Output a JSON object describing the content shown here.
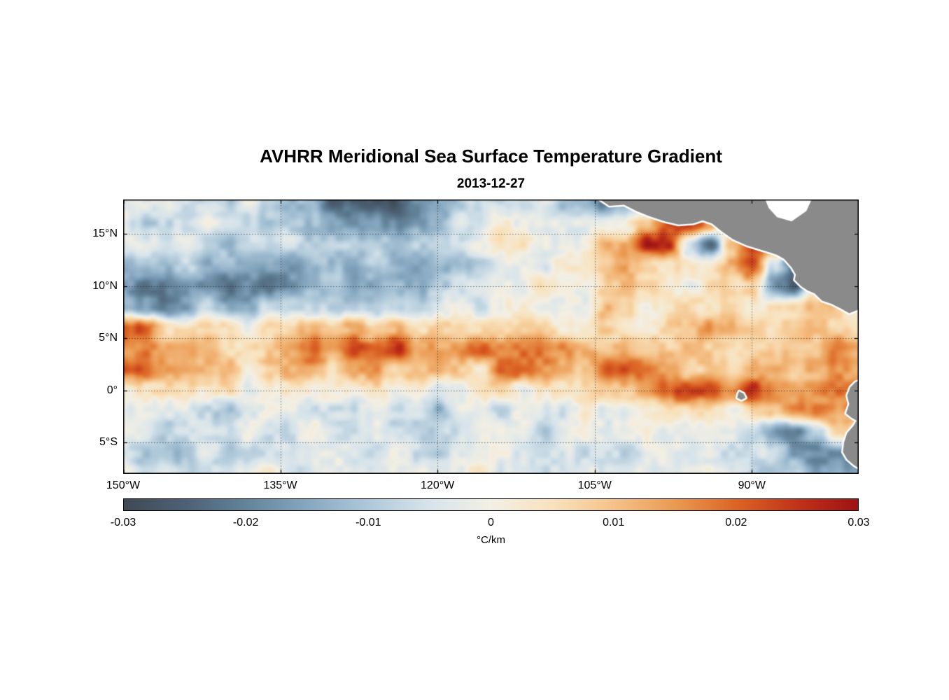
{
  "title": "AVHRR Meridional Sea Surface Temperature Gradient",
  "subtitle": "2013-12-27",
  "chart_data": {
    "type": "heatmap",
    "title": "AVHRR Meridional Sea Surface Temperature Gradient",
    "subtitle_date": "2013-12-27",
    "extent": {
      "lon_west_w": 150.0,
      "lon_east_w": 79.8,
      "lat_north": 18.3,
      "lat_south": -8.0
    },
    "x_axis": {
      "ticks": [
        {
          "label": "150°W",
          "lon_w": 150
        },
        {
          "label": "135°W",
          "lon_w": 135
        },
        {
          "label": "120°W",
          "lon_w": 120
        },
        {
          "label": "105°W",
          "lon_w": 105
        },
        {
          "label": "90°W",
          "lon_w": 90
        }
      ],
      "gridline_lons_w": [
        135,
        120,
        105,
        90
      ]
    },
    "y_axis": {
      "ticks": [
        {
          "label": "15°N",
          "lat": 15
        },
        {
          "label": "10°N",
          "lat": 10
        },
        {
          "label": "5°N",
          "lat": 5
        },
        {
          "label": "0°",
          "lat": 0
        },
        {
          "label": "5°S",
          "lat": -5
        }
      ],
      "gridline_lats": [
        15,
        10,
        5,
        0,
        -5
      ]
    },
    "colorbar": {
      "unit_label": "°C/km",
      "min": -0.03,
      "max": 0.03,
      "tick_labels": [
        "-0.03",
        "-0.02",
        "-0.01",
        "0",
        "0.01",
        "0.02",
        "0.03"
      ],
      "stops": [
        {
          "v": -0.03,
          "c": "#3e4a54"
        },
        {
          "v": -0.025,
          "c": "#4d6175"
        },
        {
          "v": -0.02,
          "c": "#628399"
        },
        {
          "v": -0.015,
          "c": "#86a7c0"
        },
        {
          "v": -0.01,
          "c": "#aec8d9"
        },
        {
          "v": -0.005,
          "c": "#d7e4eb"
        },
        {
          "v": 0.0,
          "c": "#f3efe4"
        },
        {
          "v": 0.005,
          "c": "#f8e2bd"
        },
        {
          "v": 0.01,
          "c": "#f5c289"
        },
        {
          "v": 0.015,
          "c": "#ea9a52"
        },
        {
          "v": 0.02,
          "c": "#dc6425"
        },
        {
          "v": 0.025,
          "c": "#c03318"
        },
        {
          "v": 0.03,
          "c": "#9e1215"
        }
      ]
    },
    "grid": {
      "units": "degC_per_km",
      "lons_w": [
        150,
        148,
        146,
        144,
        142,
        140,
        138,
        136,
        134,
        132,
        130,
        128,
        126,
        124,
        122,
        120,
        118,
        116,
        114,
        112,
        110,
        108,
        106,
        104,
        102,
        100,
        98,
        96,
        94,
        92,
        90,
        88,
        86,
        84,
        82,
        80
      ],
      "lats": [
        18,
        16,
        14,
        12,
        10,
        8,
        6,
        4,
        2,
        0,
        -2,
        -4,
        -6,
        -8
      ],
      "values": [
        [
          -0.002,
          -0.002,
          -0.004,
          -0.006,
          -0.008,
          -0.006,
          -0.004,
          -0.006,
          -0.01,
          -0.016,
          -0.022,
          -0.026,
          -0.026,
          -0.024,
          -0.02,
          -0.018,
          -0.012,
          -0.006,
          -0.004,
          -0.004,
          -0.006,
          -0.01,
          -0.016,
          -0.018,
          -0.014,
          -0.008,
          0.004,
          0.01,
          0.006,
          0.002,
          0,
          0,
          0,
          0,
          0,
          0
        ],
        [
          -0.006,
          -0.01,
          -0.01,
          -0.006,
          -0.004,
          -0.004,
          -0.006,
          -0.008,
          -0.01,
          -0.014,
          -0.018,
          -0.02,
          -0.018,
          -0.016,
          -0.014,
          -0.012,
          -0.008,
          -0.004,
          0,
          0.002,
          0,
          -0.004,
          -0.006,
          -0.004,
          0.004,
          0.012,
          0.022,
          0.028,
          0.016,
          -0.006,
          0.004,
          0.004,
          0.002,
          0,
          0,
          0
        ],
        [
          -0.004,
          -0.006,
          -0.004,
          -0.002,
          -0.004,
          -0.008,
          -0.01,
          -0.008,
          -0.008,
          -0.01,
          -0.012,
          -0.012,
          -0.01,
          -0.01,
          -0.012,
          -0.01,
          -0.006,
          -0.002,
          0.002,
          0.004,
          0.002,
          0,
          0.004,
          0.01,
          0.016,
          0.024,
          0.028,
          -0.01,
          -0.022,
          0.008,
          0.022,
          0.016,
          0.004,
          0.002,
          0.002,
          0.002
        ],
        [
          -0.01,
          -0.014,
          -0.012,
          -0.01,
          -0.012,
          -0.016,
          -0.018,
          -0.016,
          -0.014,
          -0.016,
          -0.014,
          -0.014,
          -0.012,
          -0.014,
          -0.016,
          -0.014,
          -0.01,
          -0.006,
          -0.004,
          -0.002,
          -0.002,
          0,
          0.004,
          0.01,
          0.014,
          0.01,
          0.006,
          0.004,
          0.004,
          0.016,
          0.024,
          -0.008,
          -0.02,
          -0.006,
          0,
          0.002
        ],
        [
          -0.014,
          -0.02,
          -0.022,
          -0.018,
          -0.016,
          -0.02,
          -0.022,
          -0.02,
          -0.016,
          -0.014,
          -0.012,
          -0.012,
          -0.014,
          -0.012,
          -0.012,
          -0.01,
          -0.008,
          -0.004,
          -0.002,
          0,
          0.002,
          0.002,
          0.002,
          0.006,
          0.012,
          0.006,
          0.002,
          0.002,
          0.004,
          0.008,
          0.006,
          -0.016,
          -0.022,
          0.004,
          0.008,
          0.006
        ],
        [
          -0.012,
          -0.016,
          -0.018,
          -0.014,
          -0.01,
          -0.014,
          -0.012,
          -0.008,
          -0.006,
          -0.008,
          -0.006,
          -0.006,
          -0.008,
          -0.006,
          -0.006,
          -0.006,
          -0.004,
          -0.002,
          0,
          0,
          -0.002,
          -0.004,
          0.002,
          0.012,
          0.006,
          0.002,
          0.004,
          0.006,
          0.002,
          0.004,
          0.006,
          0.002,
          0.008,
          0.014,
          0.01,
          0.006
        ],
        [
          0.022,
          0.018,
          0.008,
          0.004,
          0.006,
          0.004,
          0.002,
          0.004,
          0.006,
          0.01,
          0.012,
          0.01,
          0.008,
          0.01,
          0.008,
          0.01,
          0.008,
          0.004,
          0.006,
          0.008,
          0.006,
          0.004,
          0.006,
          0.008,
          0.004,
          0.004,
          0.006,
          0.01,
          0.012,
          0.014,
          0.012,
          0.006,
          0.008,
          0.012,
          0.01,
          0.008
        ],
        [
          0.012,
          0.016,
          0.014,
          0.01,
          0.012,
          0.008,
          0.006,
          0.008,
          0.012,
          0.018,
          0.014,
          0.02,
          0.022,
          0.022,
          0.016,
          0.014,
          0.018,
          0.022,
          0.014,
          0.016,
          0.014,
          0.012,
          0.016,
          0.012,
          0.01,
          0.008,
          0.008,
          0.01,
          0.008,
          0.006,
          0.008,
          0.006,
          0.008,
          0.012,
          0.014,
          0.012
        ],
        [
          0.02,
          0.02,
          0.016,
          0.012,
          0.012,
          0.008,
          0.006,
          0.006,
          0.01,
          0.01,
          0.008,
          0.012,
          0.012,
          0.01,
          0.014,
          0.014,
          0.01,
          0.008,
          0.022,
          0.02,
          0.014,
          0.008,
          0.01,
          0.016,
          0.022,
          0.016,
          0.012,
          0.01,
          0.008,
          0.01,
          0.012,
          0.01,
          0.008,
          0.01,
          0.012,
          0.01
        ],
        [
          0.004,
          0.006,
          0.004,
          0.002,
          0,
          0.002,
          0,
          -0.002,
          0,
          0.002,
          0,
          0.002,
          0.004,
          0.002,
          0,
          -0.002,
          0,
          0.002,
          0.004,
          0.002,
          0,
          0.002,
          0.004,
          0.008,
          0.012,
          0.016,
          0.022,
          0.024,
          0.022,
          0.02,
          0.026,
          0.018,
          0.016,
          0.018,
          0.022,
          0.022
        ],
        [
          -0.002,
          -0.002,
          -0.004,
          -0.006,
          -0.01,
          -0.01,
          -0.006,
          -0.004,
          -0.002,
          -0.004,
          -0.002,
          -0.004,
          -0.002,
          -0.004,
          -0.008,
          -0.012,
          -0.006,
          -0.002,
          -0.004,
          -0.002,
          -0.004,
          -0.002,
          0,
          -0.004,
          -0.002,
          0.002,
          0.004,
          0.002,
          0.004,
          0.002,
          0.006,
          0.01,
          0.014,
          0.02,
          0.018,
          0.016
        ],
        [
          -0.004,
          -0.006,
          -0.006,
          -0.004,
          -0.006,
          -0.004,
          -0.002,
          -0.006,
          -0.004,
          -0.002,
          -0.006,
          -0.004,
          -0.006,
          -0.004,
          -0.006,
          -0.01,
          -0.006,
          -0.004,
          -0.006,
          -0.004,
          -0.006,
          -0.004,
          -0.002,
          -0.006,
          -0.004,
          -0.002,
          -0.004,
          -0.002,
          0,
          -0.004,
          -0.008,
          -0.014,
          -0.022,
          -0.01,
          0.006,
          0.008
        ],
        [
          -0.004,
          -0.012,
          -0.014,
          -0.008,
          -0.004,
          -0.006,
          -0.004,
          -0.002,
          -0.004,
          -0.006,
          -0.004,
          -0.002,
          -0.004,
          -0.002,
          -0.008,
          -0.01,
          -0.004,
          -0.002,
          -0.004,
          -0.002,
          -0.004,
          -0.006,
          -0.004,
          -0.002,
          -0.004,
          -0.006,
          -0.004,
          -0.002,
          -0.004,
          -0.006,
          -0.004,
          -0.008,
          -0.012,
          -0.016,
          -0.022,
          -0.02
        ],
        [
          -0.002,
          -0.004,
          -0.006,
          -0.004,
          -0.002,
          -0.004,
          -0.002,
          0,
          -0.002,
          -0.004,
          -0.002,
          0,
          -0.002,
          -0.004,
          -0.002,
          -0.004,
          -0.002,
          0,
          -0.002,
          -0.002,
          -0.004,
          -0.002,
          0,
          -0.002,
          -0.004,
          -0.002,
          0,
          -0.002,
          -0.004,
          -0.002,
          -0.006,
          -0.01,
          -0.008,
          -0.012,
          -0.016,
          -0.014
        ]
      ]
    },
    "land": {
      "fill_color": "#8a8a8a",
      "coast_margin_color": "#ffffff",
      "polygons": {
        "central_america": [
          [
            104.8,
            18.5
          ],
          [
            103.6,
            17.7
          ],
          [
            102.2,
            17.8
          ],
          [
            101.0,
            17.2
          ],
          [
            99.8,
            16.7
          ],
          [
            98.3,
            16.2
          ],
          [
            97.0,
            15.9
          ],
          [
            95.6,
            16.0
          ],
          [
            94.7,
            16.3
          ],
          [
            93.8,
            16.0
          ],
          [
            92.8,
            15.2
          ],
          [
            91.8,
            14.5
          ],
          [
            90.5,
            13.9
          ],
          [
            89.2,
            13.5
          ],
          [
            88.2,
            13.2
          ],
          [
            87.6,
            13.0
          ],
          [
            86.9,
            12.6
          ],
          [
            86.2,
            11.8
          ],
          [
            85.8,
            11.1
          ],
          [
            85.9,
            10.6
          ],
          [
            85.3,
            10.0
          ],
          [
            84.7,
            9.6
          ],
          [
            84.0,
            9.3
          ],
          [
            83.3,
            8.6
          ],
          [
            82.4,
            8.3
          ],
          [
            81.6,
            7.9
          ],
          [
            80.7,
            7.4
          ],
          [
            80.2,
            7.6
          ],
          [
            79.5,
            7.9
          ],
          [
            79.5,
            18.5
          ]
        ],
        "south_america": [
          [
            79.5,
            1.0
          ],
          [
            80.1,
            0.8
          ],
          [
            80.6,
            0.3
          ],
          [
            80.9,
            -0.5
          ],
          [
            80.7,
            -1.3
          ],
          [
            81.0,
            -2.2
          ],
          [
            80.5,
            -2.6
          ],
          [
            80.0,
            -2.9
          ],
          [
            80.3,
            -3.4
          ],
          [
            80.9,
            -4.1
          ],
          [
            81.2,
            -5.0
          ],
          [
            81.3,
            -5.9
          ],
          [
            80.9,
            -6.6
          ],
          [
            80.2,
            -7.2
          ],
          [
            79.5,
            -7.6
          ]
        ],
        "galapagos": [
          [
            91.2,
            -0.1
          ],
          [
            90.8,
            -0.3
          ],
          [
            90.6,
            -0.7
          ],
          [
            91.0,
            -0.9
          ],
          [
            91.4,
            -0.7
          ],
          [
            91.3,
            -0.3
          ]
        ]
      },
      "sea_notches": {
        "caribbean": [
          [
            88.8,
            18.5
          ],
          [
            84.2,
            18.5
          ],
          [
            84.8,
            17.2
          ],
          [
            86.2,
            16.2
          ],
          [
            87.6,
            16.6
          ],
          [
            88.4,
            17.5
          ]
        ]
      }
    }
  }
}
